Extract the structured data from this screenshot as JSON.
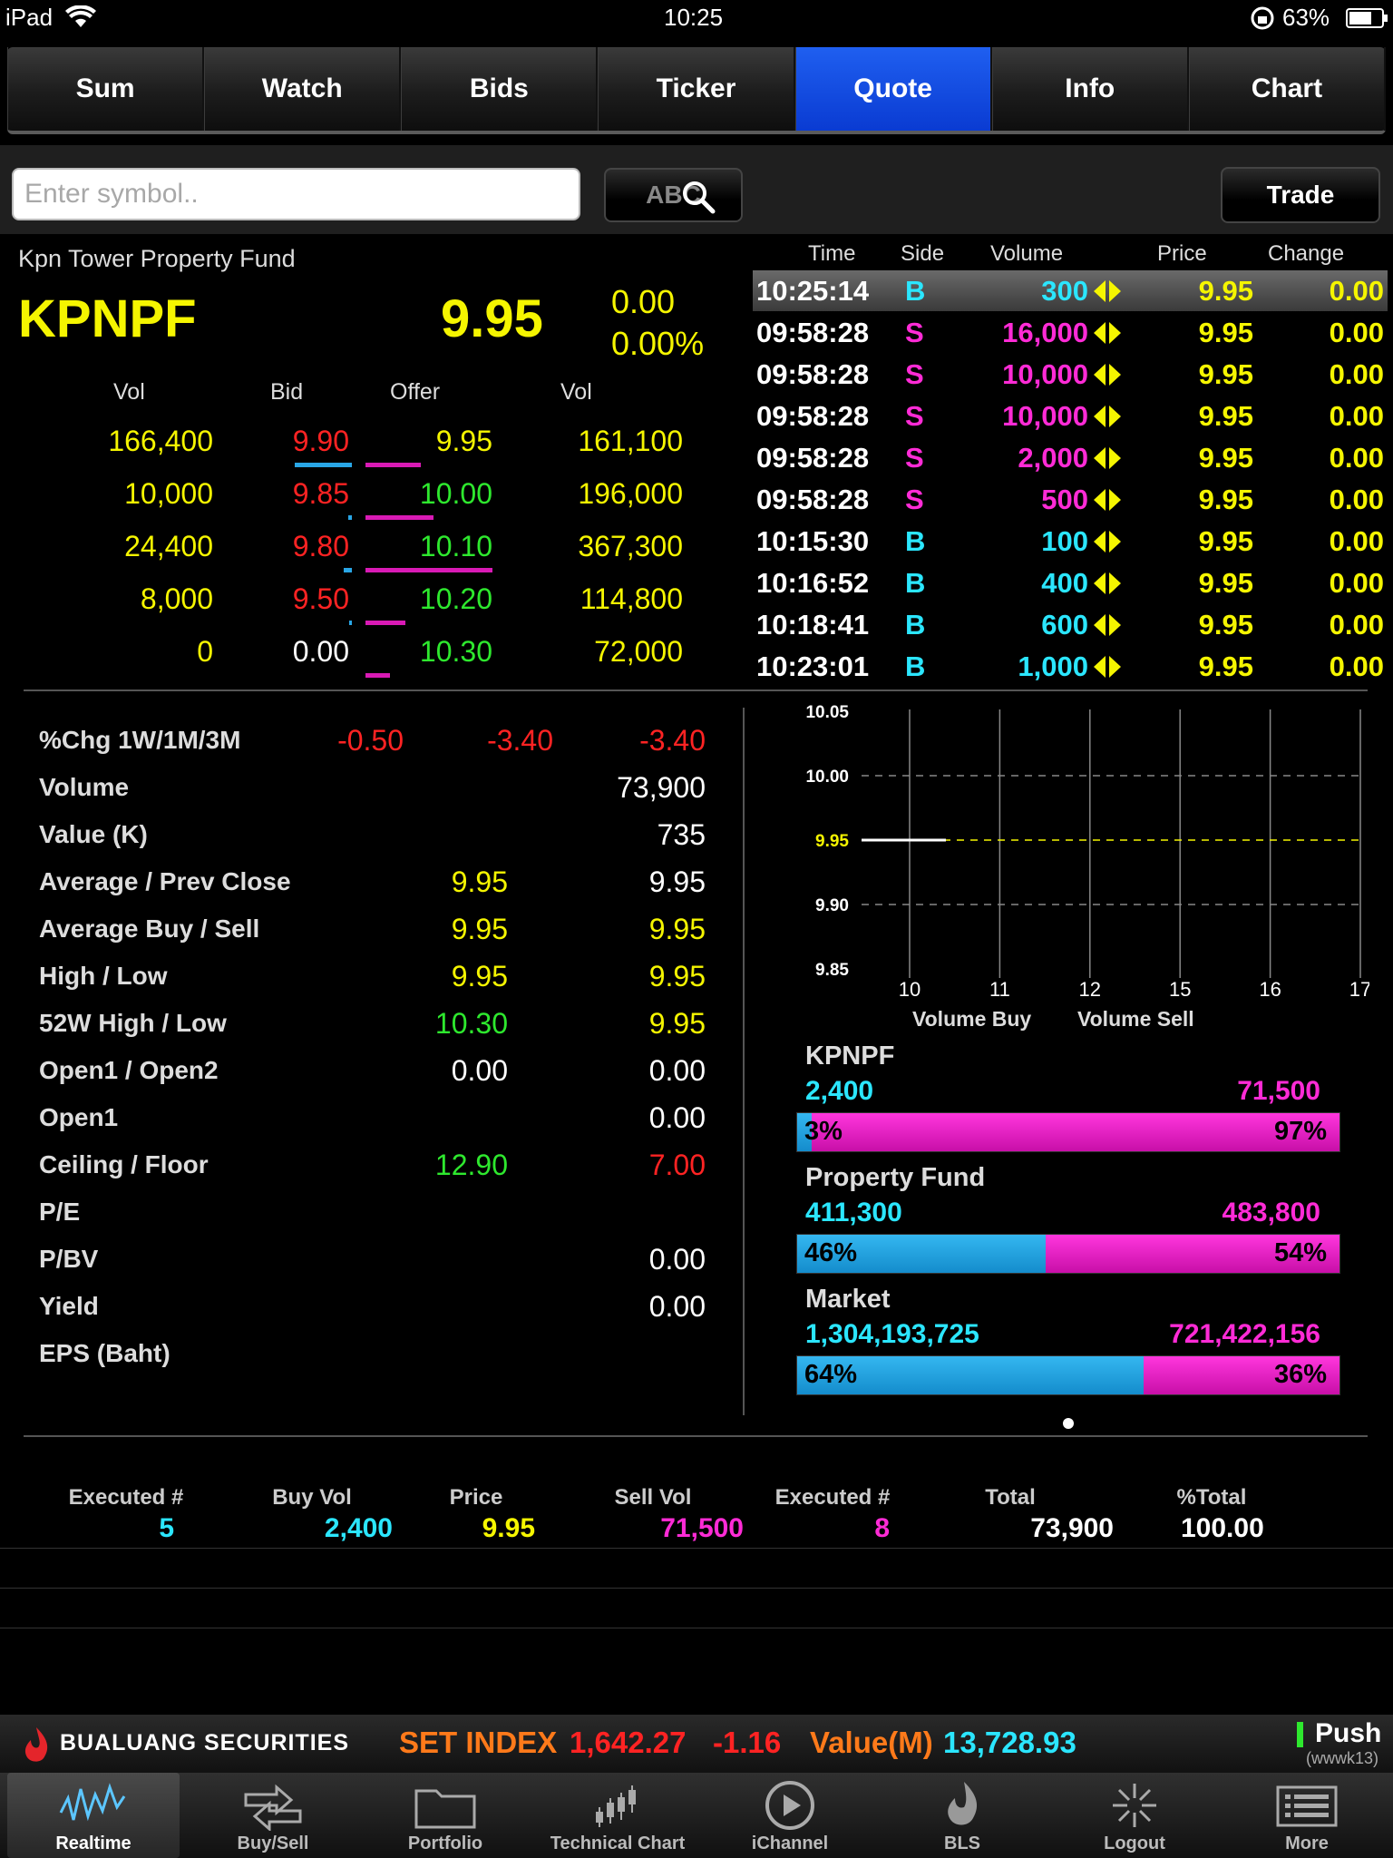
{
  "status_bar": {
    "device": "iPad",
    "time": "10:25",
    "battery": "63%"
  },
  "tabs": [
    {
      "label": "Sum"
    },
    {
      "label": "Watch"
    },
    {
      "label": "Bids"
    },
    {
      "label": "Ticker"
    },
    {
      "label": "Quote",
      "active": true
    },
    {
      "label": "Info"
    },
    {
      "label": "Chart"
    }
  ],
  "search": {
    "placeholder": "Enter symbol..",
    "abc_label": "ABC",
    "trade_label": "Trade"
  },
  "quote": {
    "company": "Kpn Tower Property Fund",
    "symbol": "KPNPF",
    "last": "9.95",
    "change": "0.00",
    "change_pct": "0.00%"
  },
  "order_book": {
    "headers": {
      "vol_bid": "Vol",
      "bid": "Bid",
      "offer": "Offer",
      "vol_offer": "Vol"
    },
    "rows": [
      {
        "bid_vol": "166,400",
        "bid": "9.90",
        "offer": "9.95",
        "offer_vol": "161,100",
        "bid_vol_num": 166400,
        "offer_vol_num": 161100
      },
      {
        "bid_vol": "10,000",
        "bid": "9.85",
        "offer": "10.00",
        "offer_vol": "196,000",
        "bid_vol_num": 10000,
        "offer_vol_num": 196000
      },
      {
        "bid_vol": "24,400",
        "bid": "9.80",
        "offer": "10.10",
        "offer_vol": "367,300",
        "bid_vol_num": 24400,
        "offer_vol_num": 367300
      },
      {
        "bid_vol": "8,000",
        "bid": "9.50",
        "offer": "10.20",
        "offer_vol": "114,800",
        "bid_vol_num": 8000,
        "offer_vol_num": 114800
      },
      {
        "bid_vol": "0",
        "bid": "0.00",
        "offer": "10.30",
        "offer_vol": "72,000",
        "bid_vol_num": 0,
        "offer_vol_num": 72000
      }
    ]
  },
  "trades": {
    "headers": {
      "time": "Time",
      "side": "Side",
      "volume": "Volume",
      "price": "Price",
      "change": "Change"
    },
    "rows": [
      {
        "time": "10:25:14",
        "side": "B",
        "volume": "300",
        "price": "9.95",
        "change": "0.00"
      },
      {
        "time": "09:58:28",
        "side": "S",
        "volume": "16,000",
        "price": "9.95",
        "change": "0.00"
      },
      {
        "time": "09:58:28",
        "side": "S",
        "volume": "10,000",
        "price": "9.95",
        "change": "0.00"
      },
      {
        "time": "09:58:28",
        "side": "S",
        "volume": "10,000",
        "price": "9.95",
        "change": "0.00"
      },
      {
        "time": "09:58:28",
        "side": "S",
        "volume": "2,000",
        "price": "9.95",
        "change": "0.00"
      },
      {
        "time": "09:58:28",
        "side": "S",
        "volume": "500",
        "price": "9.95",
        "change": "0.00"
      },
      {
        "time": "10:15:30",
        "side": "B",
        "volume": "100",
        "price": "9.95",
        "change": "0.00"
      },
      {
        "time": "10:16:52",
        "side": "B",
        "volume": "400",
        "price": "9.95",
        "change": "0.00"
      },
      {
        "time": "10:18:41",
        "side": "B",
        "volume": "600",
        "price": "9.95",
        "change": "0.00"
      },
      {
        "time": "10:23:01",
        "side": "B",
        "volume": "1,000",
        "price": "9.95",
        "change": "0.00"
      }
    ]
  },
  "stats": [
    {
      "label": "%Chg 1W/1M/3M",
      "v1": "-0.50",
      "v2": "-3.40",
      "v3": "-3.40"
    },
    {
      "label": "Volume",
      "v3": "73,900"
    },
    {
      "label": "Value (K)",
      "v3": "735"
    },
    {
      "label": "Average / Prev Close",
      "v2": "9.95",
      "v3": "9.95"
    },
    {
      "label": "Average Buy / Sell",
      "v2": "9.95",
      "v3": "9.95"
    },
    {
      "label": "High / Low",
      "v2": "9.95",
      "v3": "9.95"
    },
    {
      "label": "52W High / Low",
      "v2": "10.30",
      "v3": "9.95"
    },
    {
      "label": "Open1 / Open2",
      "v2": "0.00",
      "v3": "0.00"
    },
    {
      "label": "Open1",
      "v3": "0.00"
    },
    {
      "label": "Ceiling / Floor",
      "v2": "12.90",
      "v3": "7.00"
    },
    {
      "label": "P/E"
    },
    {
      "label": "P/BV",
      "v3": "0.00"
    },
    {
      "label": "Yield",
      "v3": "0.00"
    },
    {
      "label": "EPS (Baht)"
    }
  ],
  "chart_data": {
    "type": "line",
    "y_ticks": [
      "10.05",
      "10.00",
      "9.95",
      "9.90",
      "9.85"
    ],
    "ylim": [
      9.85,
      10.05
    ],
    "x_ticks": [
      "10",
      "11",
      "12",
      "15",
      "16",
      "17"
    ],
    "series": [
      {
        "values": [
          9.95
        ]
      }
    ],
    "reference_line": 9.95,
    "reference_label": "9.95",
    "grid": true
  },
  "volume_split": {
    "legend_buy": "Volume Buy",
    "legend_sell": "Volume Sell",
    "groups": [
      {
        "title": "KPNPF",
        "buy": "2,400",
        "sell": "71,500",
        "buy_pct": "3%",
        "sell_pct": "97%",
        "buy_frac": 0.03
      },
      {
        "title": "Property Fund",
        "buy": "411,300",
        "sell": "483,800",
        "buy_pct": "46%",
        "sell_pct": "54%",
        "buy_frac": 0.46
      },
      {
        "title": "Market",
        "buy": "1,304,193,725",
        "sell": "721,422,156",
        "buy_pct": "64%",
        "sell_pct": "36%",
        "buy_frac": 0.64
      }
    ]
  },
  "summary": {
    "headers": [
      "Executed #",
      "Buy Vol",
      "Price",
      "Sell Vol",
      "Executed #",
      "Total",
      "%Total"
    ],
    "values": [
      "5",
      "2,400",
      "9.95",
      "71,500",
      "8",
      "73,900",
      "100.00"
    ]
  },
  "ticker": {
    "brand": "BUALUANG SECURITIES",
    "index_label": "SET INDEX",
    "index_value": "1,642.27",
    "index_change": "-1.16",
    "value_label": "Value(M)",
    "value": "13,728.93",
    "push_label": "Push",
    "account": "(wwwk13)"
  },
  "bottom_nav": [
    {
      "label": "Realtime",
      "icon": "realtime-wave-icon",
      "active": true
    },
    {
      "label": "Buy/Sell",
      "icon": "buy-sell-arrows-icon"
    },
    {
      "label": "Portfolio",
      "icon": "folder-icon"
    },
    {
      "label": "Technical Chart",
      "icon": "candlestick-icon"
    },
    {
      "label": "iChannel",
      "icon": "play-icon"
    },
    {
      "label": "BLS",
      "icon": "flame-logo-icon"
    },
    {
      "label": "Logout",
      "icon": "logout-burst-icon"
    },
    {
      "label": "More",
      "icon": "list-icon"
    }
  ],
  "colors": {
    "accent_tab": "#0a3bd2",
    "buy": "#2be6ff",
    "sell": "#ff2bd6",
    "price": "#f5f500",
    "down": "#ff2323",
    "up": "#2ee82e"
  }
}
